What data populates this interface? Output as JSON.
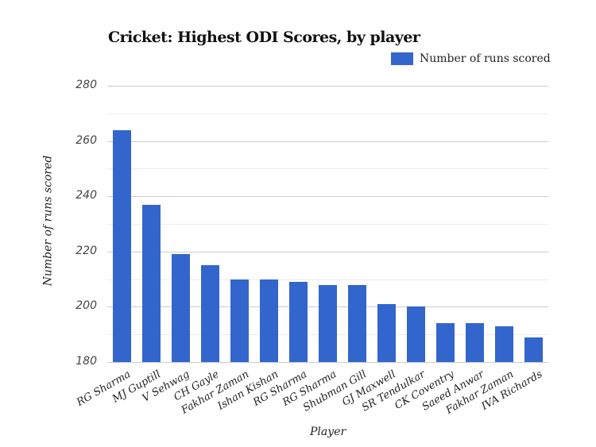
{
  "chart_data": {
    "type": "bar",
    "title": "Cricket: Highest ODI Scores, by player",
    "xlabel": "Player",
    "ylabel": "Number of runs scored",
    "ylim": [
      180,
      280
    ],
    "yticks": [
      180,
      200,
      220,
      240,
      260,
      280
    ],
    "grid": true,
    "legend_position": "top-right",
    "series": [
      {
        "name": "Number of runs scored",
        "color": "#3366cc",
        "values": [
          264,
          237,
          219,
          215,
          210,
          210,
          209,
          208,
          208,
          201,
          200,
          194,
          194,
          193,
          189
        ]
      }
    ],
    "categories": [
      "RG Sharma",
      "MJ Guptill",
      "V Sehwag",
      "CH Gayle",
      "Fakhar Zaman",
      "Ishan Kishan",
      "RG Sharma",
      "RG Sharma",
      "Shubman Gill",
      "GJ Maxwell",
      "SR Tendulkar",
      "CK Coventry",
      "Saeed Anwar",
      "Fakhar Zaman",
      "IVA Richards"
    ]
  },
  "legend": {
    "label": "Number of runs scored"
  }
}
